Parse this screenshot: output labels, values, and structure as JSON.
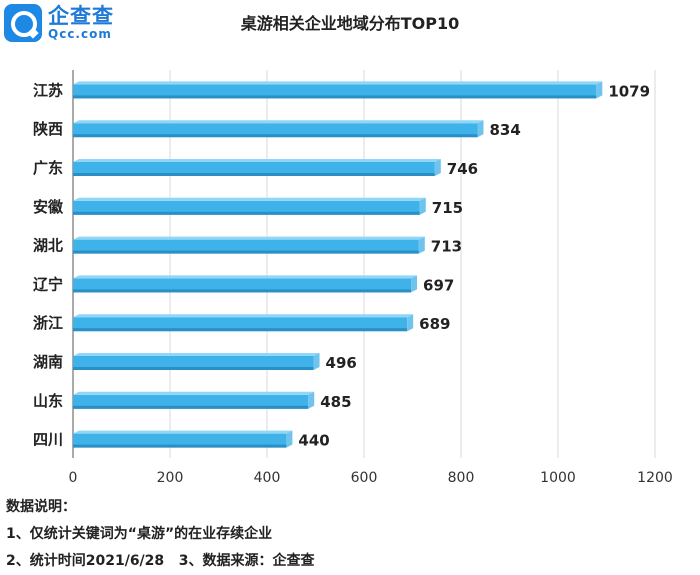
{
  "logo": {
    "cn": "企查查",
    "en": "Qcc.com"
  },
  "chart_data": {
    "type": "bar",
    "orientation": "horizontal",
    "title": "桌游相关企业地域分布TOP10",
    "categories": [
      "江苏",
      "陕西",
      "广东",
      "安徽",
      "湖北",
      "辽宁",
      "浙江",
      "湖南",
      "山东",
      "四川"
    ],
    "values": [
      1079,
      834,
      746,
      715,
      713,
      697,
      689,
      496,
      485,
      440
    ],
    "xlim": [
      0,
      1200
    ],
    "xticks": [
      0,
      200,
      400,
      600,
      800,
      1000,
      1200
    ],
    "grid": "vertical",
    "bar_color": "#3fb2ea"
  },
  "notes": {
    "heading": "数据说明：",
    "line1": "1、仅统计关键词为“桌游”的在业存续企业",
    "line2": "2、统计时间2021/6/28   3、数据来源：企查查"
  }
}
